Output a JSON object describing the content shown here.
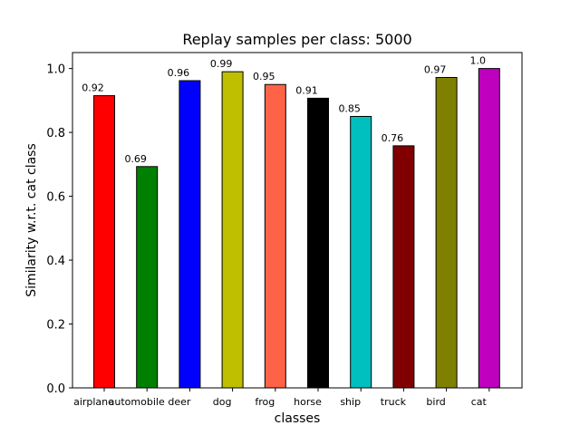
{
  "chart_data": {
    "type": "bar",
    "title": "Replay samples per class: 5000",
    "xlabel": "classes",
    "ylabel": "Similarity w.r.t. cat class",
    "ylim": [
      0,
      1.05
    ],
    "yticks": [
      "0.0",
      "0.2",
      "0.4",
      "0.6",
      "0.8",
      "1.0"
    ],
    "categories": [
      "airplane",
      "automobile",
      "deer",
      "dog",
      "frog",
      "horse",
      "ship",
      "truck",
      "bird",
      "cat"
    ],
    "values": [
      0.915,
      0.693,
      0.962,
      0.99,
      0.95,
      0.907,
      0.85,
      0.758,
      0.972,
      1.0
    ],
    "data_labels": [
      "0.92",
      "0.69",
      "0.96",
      "0.99",
      "0.95",
      "0.91",
      "0.85",
      "0.76",
      "0.97",
      "1.0"
    ],
    "colors": [
      "#ff0000",
      "#008000",
      "#0000ff",
      "#bfbf00",
      "#ff6347",
      "#000000",
      "#00bfbf",
      "#800000",
      "#808000",
      "#bf00bf"
    ],
    "grid": false,
    "legend": "none"
  }
}
